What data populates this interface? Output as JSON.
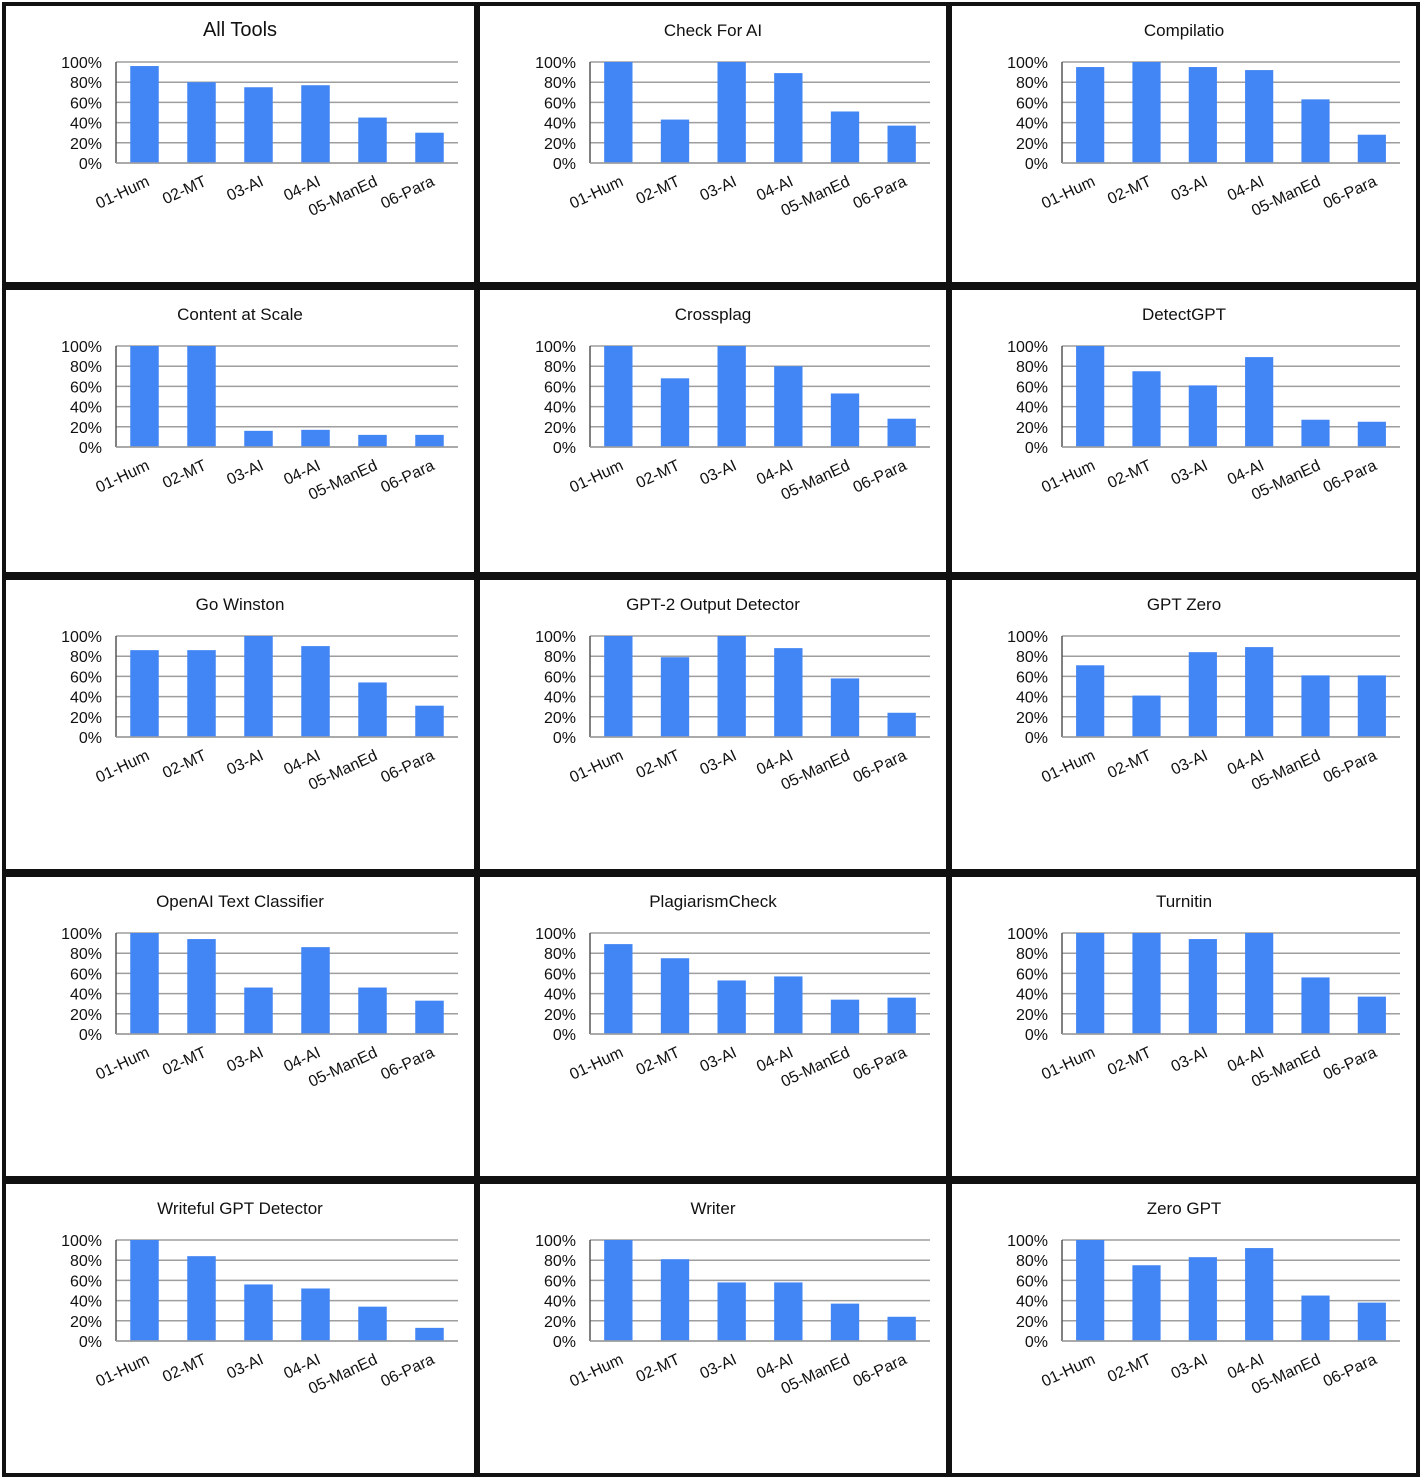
{
  "figure": {
    "bar_color": "#4285f4",
    "grid_color": "#9e9e9e",
    "axis_color": "#555555",
    "border_color": "#111111"
  },
  "chart_data": [
    {
      "type": "bar",
      "title": "All Tools",
      "categories": [
        "01-Hum",
        "02-MT",
        "03-AI",
        "04-AI",
        "05-ManEd",
        "06-Para"
      ],
      "values": [
        96,
        80,
        75,
        77,
        45,
        30
      ],
      "ylim": [
        0,
        100
      ],
      "yticks": [
        "0%",
        "20%",
        "40%",
        "60%",
        "80%",
        "100%"
      ],
      "grid": true,
      "legend": "none"
    },
    {
      "type": "bar",
      "title": "Check For AI",
      "categories": [
        "01-Hum",
        "02-MT",
        "03-AI",
        "04-AI",
        "05-ManEd",
        "06-Para"
      ],
      "values": [
        100,
        43,
        100,
        89,
        51,
        37
      ],
      "ylim": [
        0,
        100
      ],
      "yticks": [
        "0%",
        "20%",
        "40%",
        "60%",
        "80%",
        "100%"
      ],
      "grid": true,
      "legend": "none"
    },
    {
      "type": "bar",
      "title": "Compilatio",
      "categories": [
        "01-Hum",
        "02-MT",
        "03-AI",
        "04-AI",
        "05-ManEd",
        "06-Para"
      ],
      "values": [
        95,
        100,
        95,
        92,
        63,
        28
      ],
      "ylim": [
        0,
        100
      ],
      "yticks": [
        "0%",
        "20%",
        "40%",
        "60%",
        "80%",
        "100%"
      ],
      "grid": true,
      "legend": "none"
    },
    {
      "type": "bar",
      "title": "Content at Scale",
      "categories": [
        "01-Hum",
        "02-MT",
        "03-AI",
        "04-AI",
        "05-ManEd",
        "06-Para"
      ],
      "values": [
        100,
        100,
        16,
        17,
        12,
        12
      ],
      "ylim": [
        0,
        100
      ],
      "yticks": [
        "0%",
        "20%",
        "40%",
        "60%",
        "80%",
        "100%"
      ],
      "grid": true,
      "legend": "none"
    },
    {
      "type": "bar",
      "title": "Crossplag",
      "categories": [
        "01-Hum",
        "02-MT",
        "03-AI",
        "04-AI",
        "05-ManEd",
        "06-Para"
      ],
      "values": [
        100,
        68,
        100,
        80,
        53,
        28
      ],
      "ylim": [
        0,
        100
      ],
      "yticks": [
        "0%",
        "20%",
        "40%",
        "60%",
        "80%",
        "100%"
      ],
      "grid": true,
      "legend": "none"
    },
    {
      "type": "bar",
      "title": "DetectGPT",
      "categories": [
        "01-Hum",
        "02-MT",
        "03-AI",
        "04-AI",
        "05-ManEd",
        "06-Para"
      ],
      "values": [
        100,
        75,
        61,
        89,
        27,
        25
      ],
      "ylim": [
        0,
        100
      ],
      "yticks": [
        "0%",
        "20%",
        "40%",
        "60%",
        "80%",
        "100%"
      ],
      "grid": true,
      "legend": "none"
    },
    {
      "type": "bar",
      "title": "Go Winston",
      "categories": [
        "01-Hum",
        "02-MT",
        "03-AI",
        "04-AI",
        "05-ManEd",
        "06-Para"
      ],
      "values": [
        86,
        86,
        100,
        90,
        54,
        31
      ],
      "ylim": [
        0,
        100
      ],
      "yticks": [
        "0%",
        "20%",
        "40%",
        "60%",
        "80%",
        "100%"
      ],
      "grid": true,
      "legend": "none"
    },
    {
      "type": "bar",
      "title": "GPT-2 Output Detector",
      "categories": [
        "01-Hum",
        "02-MT",
        "03-AI",
        "04-AI",
        "05-ManEd",
        "06-Para"
      ],
      "values": [
        100,
        79,
        100,
        88,
        58,
        24
      ],
      "ylim": [
        0,
        100
      ],
      "yticks": [
        "0%",
        "20%",
        "40%",
        "60%",
        "80%",
        "100%"
      ],
      "grid": true,
      "legend": "none"
    },
    {
      "type": "bar",
      "title": "GPT Zero",
      "categories": [
        "01-Hum",
        "02-MT",
        "03-AI",
        "04-AI",
        "05-ManEd",
        "06-Para"
      ],
      "values": [
        71,
        41,
        84,
        89,
        61,
        61
      ],
      "ylim": [
        0,
        100
      ],
      "yticks": [
        "0%",
        "20%",
        "40%",
        "60%",
        "80%",
        "100%"
      ],
      "grid": true,
      "legend": "none"
    },
    {
      "type": "bar",
      "title": "OpenAI Text Classifier",
      "categories": [
        "01-Hum",
        "02-MT",
        "03-AI",
        "04-AI",
        "05-ManEd",
        "06-Para"
      ],
      "values": [
        100,
        94,
        46,
        86,
        46,
        33
      ],
      "ylim": [
        0,
        100
      ],
      "yticks": [
        "0%",
        "20%",
        "40%",
        "60%",
        "80%",
        "100%"
      ],
      "grid": true,
      "legend": "none"
    },
    {
      "type": "bar",
      "title": "PlagiarismCheck",
      "categories": [
        "01-Hum",
        "02-MT",
        "03-AI",
        "04-AI",
        "05-ManEd",
        "06-Para"
      ],
      "values": [
        89,
        75,
        53,
        57,
        34,
        36
      ],
      "ylim": [
        0,
        100
      ],
      "yticks": [
        "0%",
        "20%",
        "40%",
        "60%",
        "80%",
        "100%"
      ],
      "grid": true,
      "legend": "none"
    },
    {
      "type": "bar",
      "title": "Turnitin",
      "categories": [
        "01-Hum",
        "02-MT",
        "03-AI",
        "04-AI",
        "05-ManEd",
        "06-Para"
      ],
      "values": [
        100,
        100,
        94,
        100,
        56,
        37
      ],
      "ylim": [
        0,
        100
      ],
      "yticks": [
        "0%",
        "20%",
        "40%",
        "60%",
        "80%",
        "100%"
      ],
      "grid": true,
      "legend": "none"
    },
    {
      "type": "bar",
      "title": "Writeful GPT Detector",
      "categories": [
        "01-Hum",
        "02-MT",
        "03-AI",
        "04-AI",
        "05-ManEd",
        "06-Para"
      ],
      "values": [
        100,
        84,
        56,
        52,
        34,
        13
      ],
      "ylim": [
        0,
        100
      ],
      "yticks": [
        "0%",
        "20%",
        "40%",
        "60%",
        "80%",
        "100%"
      ],
      "grid": true,
      "legend": "none"
    },
    {
      "type": "bar",
      "title": "Writer",
      "categories": [
        "01-Hum",
        "02-MT",
        "03-AI",
        "04-AI",
        "05-ManEd",
        "06-Para"
      ],
      "values": [
        100,
        81,
        58,
        58,
        37,
        24
      ],
      "ylim": [
        0,
        100
      ],
      "yticks": [
        "0%",
        "20%",
        "40%",
        "60%",
        "80%",
        "100%"
      ],
      "grid": true,
      "legend": "none"
    },
    {
      "type": "bar",
      "title": "Zero GPT",
      "categories": [
        "01-Hum",
        "02-MT",
        "03-AI",
        "04-AI",
        "05-ManEd",
        "06-Para"
      ],
      "values": [
        100,
        75,
        83,
        92,
        45,
        38
      ],
      "ylim": [
        0,
        100
      ],
      "yticks": [
        "0%",
        "20%",
        "40%",
        "60%",
        "80%",
        "100%"
      ],
      "grid": true,
      "legend": "none"
    }
  ]
}
